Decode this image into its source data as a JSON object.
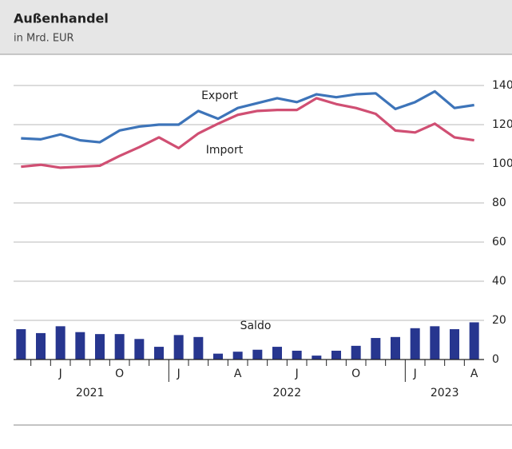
{
  "chart_data": {
    "type": "line",
    "title": "Außenhandel",
    "subtitle": "in Mrd. EUR",
    "categories": [
      null,
      null,
      "J",
      null,
      null,
      "O",
      null,
      null,
      "J",
      null,
      null,
      "A",
      null,
      null,
      "J",
      null,
      null,
      "O",
      null,
      null,
      "J",
      null,
      null,
      "A"
    ],
    "years": [
      "2021",
      "2022",
      "2023"
    ],
    "series": [
      {
        "name": "Export",
        "type": "line",
        "color": "#3d74b9",
        "values": [
          113,
          112.5,
          115,
          112,
          111,
          117,
          119,
          120,
          120,
          127,
          123,
          128.5,
          131,
          133.5,
          131.5,
          135.5,
          134,
          135.5,
          136,
          128,
          131.5,
          137,
          128.5,
          130
        ]
      },
      {
        "name": "Import",
        "type": "line",
        "color": "#d04f73",
        "values": [
          98.5,
          99.5,
          98,
          98.5,
          99,
          104,
          108.5,
          113.5,
          108,
          115.5,
          120.5,
          125,
          127,
          127.5,
          127.5,
          133.5,
          130.5,
          128.5,
          125.5,
          117,
          116,
          120.5,
          113.5,
          112
        ]
      },
      {
        "name": "Saldo",
        "type": "bar",
        "color": "#27368f",
        "values": [
          15.5,
          13.5,
          17,
          14,
          13,
          13,
          10.5,
          6.5,
          12.5,
          11.5,
          3,
          4,
          5,
          6.5,
          4.5,
          2,
          4.5,
          7,
          11,
          11.5,
          16,
          17,
          15.5,
          19
        ]
      }
    ],
    "ylim": [
      0,
      140
    ],
    "yticks": [
      0,
      20,
      40,
      60,
      80,
      100,
      120,
      140
    ],
    "grid": true
  }
}
